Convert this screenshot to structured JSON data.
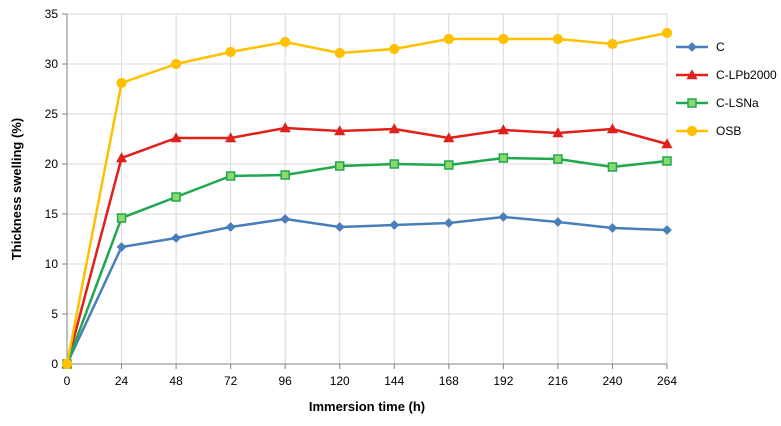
{
  "chart_data": {
    "type": "line",
    "title": "",
    "xlabel": "Immersion time (h)",
    "ylabel": "Thickness swelling (%)",
    "x": [
      0,
      24,
      48,
      72,
      96,
      120,
      144,
      168,
      192,
      216,
      240,
      264
    ],
    "xlim": [
      0,
      264
    ],
    "ylim": [
      0,
      35
    ],
    "xticks": [
      0,
      24,
      48,
      72,
      96,
      120,
      144,
      168,
      192,
      216,
      240,
      264
    ],
    "yticks": [
      0,
      5,
      10,
      15,
      20,
      25,
      30,
      35
    ],
    "grid": true,
    "legend_position": "right",
    "series": [
      {
        "name": "C",
        "marker": "diamond",
        "color": "#4A7EBB",
        "values": [
          0,
          11.7,
          12.6,
          13.7,
          14.5,
          13.7,
          13.9,
          14.1,
          14.7,
          14.2,
          13.6,
          13.4
        ]
      },
      {
        "name": "C-LPb2000",
        "marker": "triangle",
        "color": "#E0201B",
        "values": [
          0,
          20.6,
          22.6,
          22.6,
          23.6,
          23.3,
          23.5,
          22.6,
          23.4,
          23.1,
          23.5,
          22.0
        ]
      },
      {
        "name": "C-LSNa",
        "marker": "square",
        "color": "#1FA74F",
        "values": [
          0,
          14.6,
          16.7,
          18.8,
          18.9,
          19.8,
          20.0,
          19.9,
          20.6,
          20.5,
          19.7,
          20.3
        ]
      },
      {
        "name": "OSB",
        "marker": "circle",
        "color": "#FFC000",
        "values": [
          0,
          28.1,
          30.0,
          31.2,
          32.2,
          31.1,
          31.5,
          32.5,
          32.5,
          32.5,
          32.0,
          33.1
        ]
      }
    ]
  }
}
